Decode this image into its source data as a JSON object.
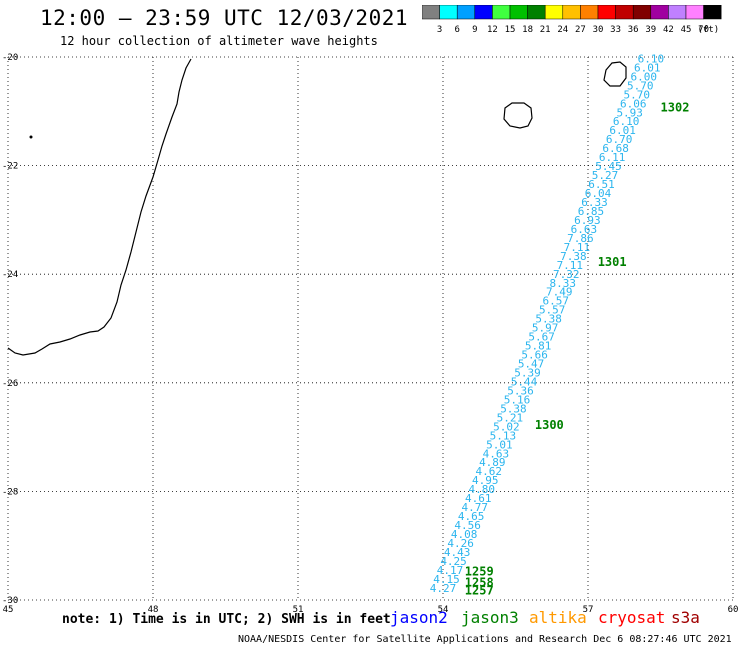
{
  "header": {
    "title": "12:00 — 23:59 UTC 12/03/2021",
    "subtitle": "12 hour collection of altimeter wave heights"
  },
  "colorbar": {
    "unit": "(ft)",
    "colors": [
      "#808080",
      "#00ffff",
      "#00a0ff",
      "#0000ff",
      "#40ff40",
      "#00c000",
      "#008000",
      "#ffff00",
      "#ffc000",
      "#ff8000",
      "#ff0000",
      "#c00000",
      "#800000",
      "#a000a0",
      "#c080ff",
      "#ff80ff",
      "#000000"
    ],
    "labels": [
      "3",
      "6",
      "9",
      "12",
      "15",
      "18",
      "21",
      "24",
      "27",
      "30",
      "33",
      "36",
      "39",
      "42",
      "45",
      "70"
    ]
  },
  "map": {
    "lon_ticks": [
      "45",
      "48",
      "51",
      "54",
      "57",
      "60"
    ],
    "lat_ticks": [
      "-20",
      "-22",
      "-24",
      "-26",
      "-28",
      "-30"
    ],
    "lon_range": [
      45,
      60
    ],
    "lat_range": [
      -30,
      -20
    ],
    "grid": true,
    "track_color": "#2bb5ee",
    "track_start": {
      "lon": 54.0,
      "lat": -29.85
    },
    "track_end": {
      "lon": 58.3,
      "lat": -20.1
    },
    "wave_heights_ft": [
      "4.27",
      "4.15",
      "4.17",
      "4.25",
      "4.43",
      "4.26",
      "4.08",
      "4.56",
      "4.65",
      "4.77",
      "4.61",
      "4.80",
      "4.95",
      "4.62",
      "4.89",
      "4.63",
      "5.01",
      "5.13",
      "5.02",
      "5.21",
      "5.38",
      "5.16",
      "5.36",
      "5.44",
      "5.39",
      "5.47",
      "5.66",
      "5.81",
      "5.67",
      "5.97",
      "5.38",
      "5.57",
      "6.57",
      "7.49",
      "8.33",
      "7.32",
      "7.11",
      "7.38",
      "7.11",
      "7.86",
      "6.63",
      "6.93",
      "6.85",
      "6.33",
      "6.04",
      "6.51",
      "5.27",
      "5.45",
      "6.11",
      "6.68",
      "6.70",
      "6.01",
      "6.10",
      "5.93",
      "6.06",
      "5.70",
      "5.70",
      "6.00",
      "6.01",
      "6.10"
    ],
    "time_labels": [
      {
        "text": "1302",
        "lon": 58.8,
        "lat": -21.0
      },
      {
        "text": "1301",
        "lon": 57.5,
        "lat": -23.85
      },
      {
        "text": "1300",
        "lon": 56.2,
        "lat": -26.85
      },
      {
        "text": "1259",
        "lon": 54.75,
        "lat": -29.55
      },
      {
        "text": "1258",
        "lon": 54.75,
        "lat": -29.75
      },
      {
        "text": "1257",
        "lon": 54.75,
        "lat": -29.9
      }
    ]
  },
  "legend": {
    "note": "note: 1) Time is in UTC; 2) SWH is in feet",
    "missions": [
      {
        "name": "jason2",
        "color": "#0000ff"
      },
      {
        "name": "jason3",
        "color": "#008000"
      },
      {
        "name": "altika",
        "color": "#ff9900"
      },
      {
        "name": "cryosat",
        "color": "#ff0000"
      },
      {
        "name": "s3a",
        "color": "#a00000"
      }
    ]
  },
  "footer": {
    "credit": "NOAA/NESDIS Center for Satellite Applications and Research    Dec  6 08:27:46 UTC 2021"
  }
}
